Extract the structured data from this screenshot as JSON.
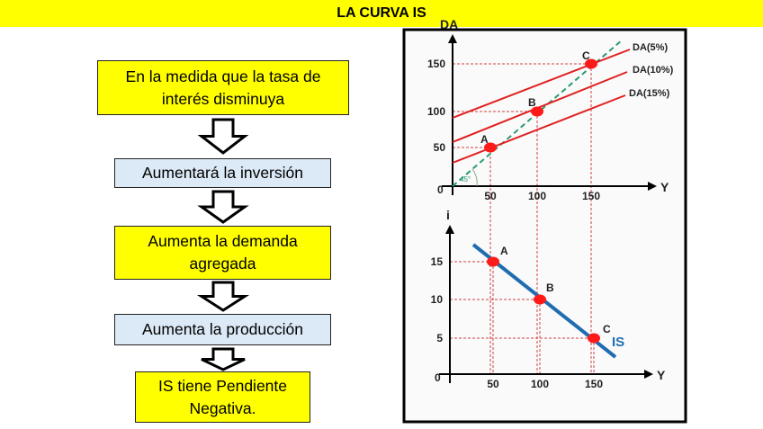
{
  "title": "LA CURVA IS",
  "flow": [
    {
      "text": "En la medida que la tasa de interés disminuya",
      "color": "#ffff00"
    },
    {
      "text": "Aumentará la inversión",
      "color": "#dce9f6"
    },
    {
      "text": "Aumenta la demanda agregada",
      "color": "#ffff00"
    },
    {
      "text": "Aumenta la producción",
      "color": "#dce9f6"
    },
    {
      "text": "IS tiene Pendiente Negativa.",
      "color": "#ffff00"
    }
  ],
  "chart_data": [
    {
      "type": "line",
      "xlabel": "Y",
      "ylabel": "DA",
      "origin_label": "0",
      "angle_label": "45°",
      "x_ticks": [
        "50",
        "100",
        "150"
      ],
      "y_ticks": [
        "50",
        "100",
        "150"
      ],
      "series": [
        {
          "name": "DA(5%)",
          "color": "#e02020"
        },
        {
          "name": "DA(10%)",
          "color": "#e02020"
        },
        {
          "name": "DA(15%)",
          "color": "#e02020"
        }
      ],
      "points": [
        {
          "label": "A",
          "x": 50,
          "y": 50
        },
        {
          "label": "B",
          "x": 100,
          "y": 100
        },
        {
          "label": "C",
          "x": 150,
          "y": 150
        }
      ]
    },
    {
      "type": "line",
      "xlabel": "Y",
      "ylabel": "i",
      "origin_label": "0",
      "x_ticks": [
        "50",
        "100",
        "150"
      ],
      "y_ticks": [
        "5",
        "10",
        "15"
      ],
      "series": [
        {
          "name": "IS",
          "color": "#1f6db0"
        }
      ],
      "points": [
        {
          "label": "A",
          "x": 50,
          "y": 15
        },
        {
          "label": "B",
          "x": 100,
          "y": 10
        },
        {
          "label": "C",
          "x": 150,
          "y": 5
        }
      ]
    }
  ]
}
